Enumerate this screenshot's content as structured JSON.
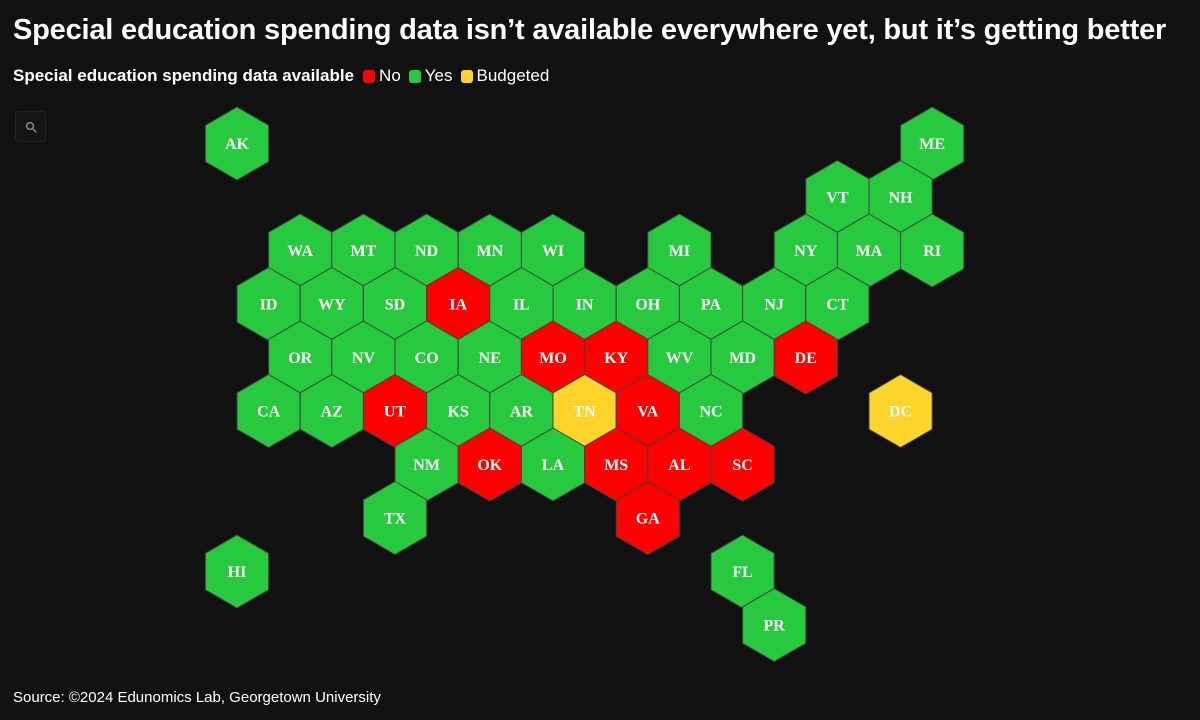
{
  "title": "Special education spending data isn’t available everywhere yet, but it’s getting better",
  "legend": {
    "title": "Special education spending data available",
    "items": [
      {
        "key": "no",
        "label": "No",
        "color": "#ff0000"
      },
      {
        "key": "yes",
        "label": "Yes",
        "color": "#27c93f"
      },
      {
        "key": "budgeted",
        "label": "Budgeted",
        "color": "#fdd52a"
      }
    ]
  },
  "search_icon": "search-icon",
  "source": "Source: ©2024 Edunomics Lab, Georgetown University",
  "states": [
    {
      "code": "AK",
      "row": 0,
      "col": 0,
      "status": "yes"
    },
    {
      "code": "ME",
      "row": 0,
      "col": 11,
      "status": "yes"
    },
    {
      "code": "VT",
      "row": 1,
      "col": 10,
      "status": "yes"
    },
    {
      "code": "NH",
      "row": 1,
      "col": 11,
      "status": "yes"
    },
    {
      "code": "WA",
      "row": 2,
      "col": 1,
      "status": "yes"
    },
    {
      "code": "MT",
      "row": 2,
      "col": 2,
      "status": "yes"
    },
    {
      "code": "ND",
      "row": 2,
      "col": 3,
      "status": "yes"
    },
    {
      "code": "MN",
      "row": 2,
      "col": 4,
      "status": "yes"
    },
    {
      "code": "WI",
      "row": 2,
      "col": 5,
      "status": "yes"
    },
    {
      "code": "MI",
      "row": 2,
      "col": 7,
      "status": "yes"
    },
    {
      "code": "NY",
      "row": 2,
      "col": 9,
      "status": "yes"
    },
    {
      "code": "MA",
      "row": 2,
      "col": 10,
      "status": "yes"
    },
    {
      "code": "RI",
      "row": 2,
      "col": 11,
      "status": "yes"
    },
    {
      "code": "ID",
      "row": 3,
      "col": 1,
      "status": "yes"
    },
    {
      "code": "WY",
      "row": 3,
      "col": 2,
      "status": "yes"
    },
    {
      "code": "SD",
      "row": 3,
      "col": 3,
      "status": "yes"
    },
    {
      "code": "IA",
      "row": 3,
      "col": 4,
      "status": "no"
    },
    {
      "code": "IL",
      "row": 3,
      "col": 5,
      "status": "yes"
    },
    {
      "code": "IN",
      "row": 3,
      "col": 6,
      "status": "yes"
    },
    {
      "code": "OH",
      "row": 3,
      "col": 7,
      "status": "yes"
    },
    {
      "code": "PA",
      "row": 3,
      "col": 8,
      "status": "yes"
    },
    {
      "code": "NJ",
      "row": 3,
      "col": 9,
      "status": "yes"
    },
    {
      "code": "CT",
      "row": 3,
      "col": 10,
      "status": "yes"
    },
    {
      "code": "OR",
      "row": 4,
      "col": 1,
      "status": "yes"
    },
    {
      "code": "NV",
      "row": 4,
      "col": 2,
      "status": "yes"
    },
    {
      "code": "CO",
      "row": 4,
      "col": 3,
      "status": "yes"
    },
    {
      "code": "NE",
      "row": 4,
      "col": 4,
      "status": "yes"
    },
    {
      "code": "MO",
      "row": 4,
      "col": 5,
      "status": "no"
    },
    {
      "code": "KY",
      "row": 4,
      "col": 6,
      "status": "no"
    },
    {
      "code": "WV",
      "row": 4,
      "col": 7,
      "status": "yes"
    },
    {
      "code": "MD",
      "row": 4,
      "col": 8,
      "status": "yes"
    },
    {
      "code": "DE",
      "row": 4,
      "col": 9,
      "status": "no"
    },
    {
      "code": "CA",
      "row": 5,
      "col": 1,
      "status": "yes"
    },
    {
      "code": "AZ",
      "row": 5,
      "col": 2,
      "status": "yes"
    },
    {
      "code": "UT",
      "row": 5,
      "col": 3,
      "status": "no"
    },
    {
      "code": "KS",
      "row": 5,
      "col": 4,
      "status": "yes"
    },
    {
      "code": "AR",
      "row": 5,
      "col": 5,
      "status": "yes"
    },
    {
      "code": "TN",
      "row": 5,
      "col": 6,
      "status": "budgeted"
    },
    {
      "code": "VA",
      "row": 5,
      "col": 7,
      "status": "no"
    },
    {
      "code": "NC",
      "row": 5,
      "col": 8,
      "status": "yes"
    },
    {
      "code": "DC",
      "row": 5,
      "col": 11,
      "status": "budgeted"
    },
    {
      "code": "NM",
      "row": 6,
      "col": 3,
      "status": "yes"
    },
    {
      "code": "OK",
      "row": 6,
      "col": 4,
      "status": "no"
    },
    {
      "code": "LA",
      "row": 6,
      "col": 5,
      "status": "yes"
    },
    {
      "code": "MS",
      "row": 6,
      "col": 6,
      "status": "no"
    },
    {
      "code": "AL",
      "row": 6,
      "col": 7,
      "status": "no"
    },
    {
      "code": "SC",
      "row": 6,
      "col": 8,
      "status": "no"
    },
    {
      "code": "TX",
      "row": 7,
      "col": 3,
      "status": "yes"
    },
    {
      "code": "GA",
      "row": 7,
      "col": 7,
      "status": "no"
    },
    {
      "code": "HI",
      "row": 8,
      "col": 0,
      "status": "yes"
    },
    {
      "code": "FL",
      "row": 8,
      "col": 8,
      "status": "yes"
    },
    {
      "code": "PR",
      "row": 9,
      "col": 9,
      "status": "yes"
    }
  ]
}
